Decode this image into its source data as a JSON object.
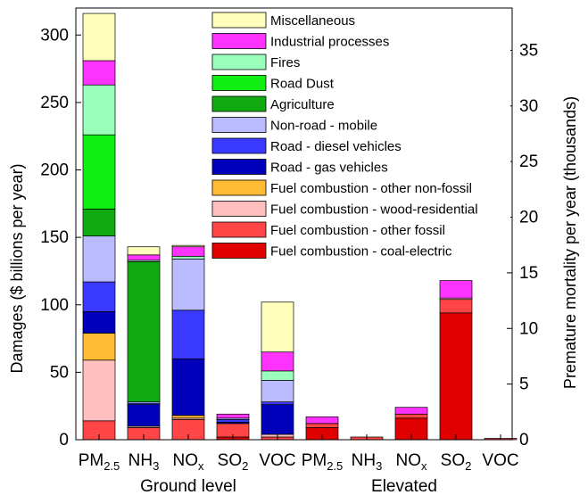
{
  "chart_data": {
    "type": "bar",
    "stacked": true,
    "ylabel": "Damages ($ billions per year)",
    "ylabel_right": "Premature mortality per year (thousands)",
    "ylim": [
      0,
      320
    ],
    "ylim_right": [
      0,
      38.8
    ],
    "yticks": [
      "0",
      "50",
      "100",
      "150",
      "200",
      "250",
      "300"
    ],
    "yticks_right": [
      "0",
      "5",
      "10",
      "15",
      "20",
      "25",
      "30",
      "35"
    ],
    "groups": [
      "Ground level",
      "Elevated"
    ],
    "categories": [
      {
        "main": "PM",
        "sub": "2.5"
      },
      {
        "main": "NH",
        "sub": "3"
      },
      {
        "main": "NO",
        "sub": "x"
      },
      {
        "main": "SO",
        "sub": "2"
      },
      {
        "main": "VOC",
        "sub": ""
      }
    ],
    "legend_placement": "top-center",
    "grid": false,
    "series": [
      {
        "name": "Fuel combustion - coal-electric",
        "color": "#e00000"
      },
      {
        "name": "Fuel combustion - other fossil",
        "color": "#ff4545"
      },
      {
        "name": "Fuel combustion - wood-residential",
        "color": "#ffbfbf"
      },
      {
        "name": "Fuel combustion - other non-fossil",
        "color": "#ffbb33"
      },
      {
        "name": "Road - gas vehicles",
        "color": "#0000bb"
      },
      {
        "name": "Road - diesel vehicles",
        "color": "#3a3aff"
      },
      {
        "name": "Non-road - mobile",
        "color": "#bbbbff"
      },
      {
        "name": "Agriculture",
        "color": "#11aa11"
      },
      {
        "name": "Road Dust",
        "color": "#11ee11"
      },
      {
        "name": "Fires",
        "color": "#99ffbb"
      },
      {
        "name": "Industrial processes",
        "color": "#ff33ff"
      },
      {
        "name": "Miscellaneous",
        "color": "#ffffbb"
      }
    ],
    "bars": [
      {
        "group": "Ground level",
        "category": "PM2.5",
        "values": [
          0,
          14,
          45,
          20,
          16,
          22,
          34,
          20,
          55,
          37,
          18,
          35
        ]
      },
      {
        "group": "Ground level",
        "category": "NH3",
        "values": [
          0,
          9,
          1,
          0,
          16,
          1,
          1,
          104,
          0,
          1,
          4,
          6
        ]
      },
      {
        "group": "Ground level",
        "category": "NOx",
        "values": [
          0,
          15,
          1,
          2,
          42,
          36,
          38,
          0,
          0,
          2,
          7,
          1
        ]
      },
      {
        "group": "Ground level",
        "category": "SO2",
        "values": [
          2,
          10,
          0,
          0,
          1,
          2,
          1,
          0,
          0,
          0,
          3,
          0
        ]
      },
      {
        "group": "Ground level",
        "category": "VOC",
        "values": [
          0,
          2,
          2,
          0,
          22,
          2,
          16,
          0,
          0,
          7,
          14,
          37
        ]
      },
      {
        "group": "Elevated",
        "category": "PM2.5",
        "values": [
          9,
          3,
          0,
          0,
          0,
          0,
          0,
          0,
          0,
          0,
          5,
          0
        ]
      },
      {
        "group": "Elevated",
        "category": "NH3",
        "values": [
          0,
          2,
          0,
          0,
          0,
          0,
          0,
          0,
          0,
          0,
          0,
          0
        ]
      },
      {
        "group": "Elevated",
        "category": "NOx",
        "values": [
          16,
          3,
          0,
          0,
          0,
          0,
          0,
          0,
          0,
          0,
          5,
          0
        ]
      },
      {
        "group": "Elevated",
        "category": "SO2",
        "values": [
          94,
          10,
          1,
          0,
          0,
          0,
          0,
          0,
          0,
          0,
          13,
          0
        ]
      },
      {
        "group": "Elevated",
        "category": "VOC",
        "values": [
          0,
          1,
          0,
          0,
          0,
          0,
          0,
          0,
          0,
          0,
          0,
          0
        ]
      }
    ]
  }
}
